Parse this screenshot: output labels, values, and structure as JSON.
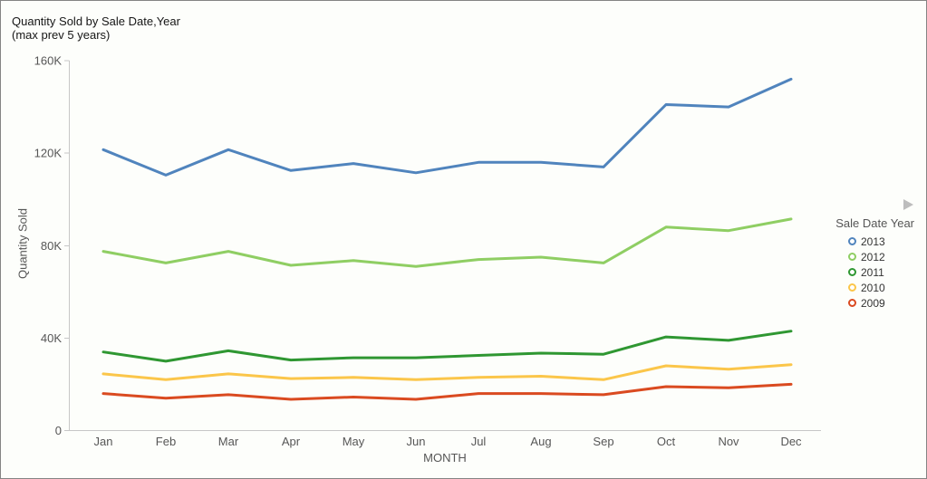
{
  "window": {
    "background": "#fdfefb",
    "border_color": "#848484"
  },
  "title": {
    "line1": "Quantity Sold by Sale Date,Year",
    "line2": "(max prev 5 years)"
  },
  "y_axis": {
    "label": "Quantity Sold"
  },
  "x_axis": {
    "label": "MONTH"
  },
  "legend": {
    "title": "Sale Date Year",
    "expander_icon": "right-triangle",
    "expander_color": "#bdbdbd",
    "items": [
      {
        "label": "2013",
        "color": "#5084bd"
      },
      {
        "label": "2012",
        "color": "#8fce63"
      },
      {
        "label": "2011",
        "color": "#2f9732"
      },
      {
        "label": "2010",
        "color": "#fbc64a"
      },
      {
        "label": "2009",
        "color": "#da4a20"
      }
    ]
  },
  "chart_data": {
    "type": "line",
    "title": "Quantity Sold by Sale Date,Year (max prev 5 years)",
    "xlabel": "MONTH",
    "ylabel": "Quantity Sold",
    "legend_title": "Sale Date Year",
    "legend_position": "right",
    "grid": false,
    "ylim": [
      0,
      160000
    ],
    "yticks": [
      {
        "value": 0,
        "label": "0"
      },
      {
        "value": 40000,
        "label": "40K"
      },
      {
        "value": 80000,
        "label": "80K"
      },
      {
        "value": 120000,
        "label": "120K"
      },
      {
        "value": 160000,
        "label": "160K"
      }
    ],
    "x": [
      "Jan",
      "Feb",
      "Mar",
      "Apr",
      "May",
      "Jun",
      "Jul",
      "Aug",
      "Sep",
      "Oct",
      "Nov",
      "Dec"
    ],
    "series": [
      {
        "name": "2013",
        "color": "#5084bd",
        "values": [
          121500,
          110500,
          121500,
          112500,
          115500,
          111500,
          116000,
          116000,
          114000,
          141000,
          140000,
          152000
        ]
      },
      {
        "name": "2012",
        "color": "#8fce63",
        "values": [
          77500,
          72500,
          77500,
          71500,
          73500,
          71000,
          74000,
          75000,
          72500,
          88000,
          86500,
          91500
        ]
      },
      {
        "name": "2011",
        "color": "#2f9732",
        "values": [
          34000,
          30000,
          34500,
          30500,
          31500,
          31500,
          32500,
          33500,
          33000,
          40500,
          39000,
          43000
        ]
      },
      {
        "name": "2010",
        "color": "#fbc64a",
        "values": [
          24500,
          22000,
          24500,
          22500,
          23000,
          22000,
          23000,
          23500,
          22000,
          28000,
          26500,
          28500
        ]
      },
      {
        "name": "2009",
        "color": "#da4a20",
        "values": [
          16000,
          14000,
          15500,
          13500,
          14500,
          13500,
          16000,
          16000,
          15500,
          19000,
          18500,
          20000
        ]
      }
    ]
  }
}
